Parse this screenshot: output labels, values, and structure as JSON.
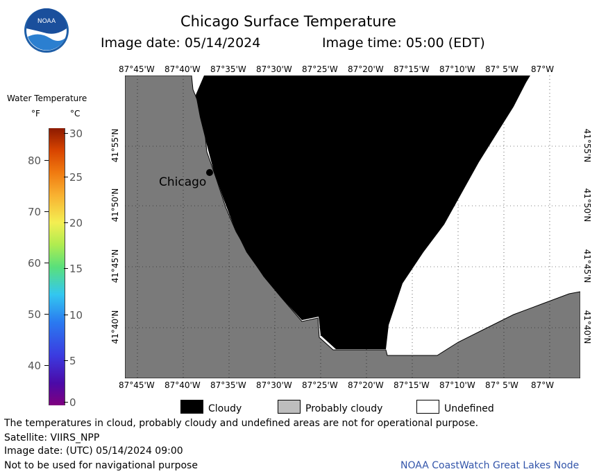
{
  "title": "Chicago Surface Temperature",
  "image_date_label": "Image date: 05/14/2024",
  "image_time_label": "Image time: 05:00 (EDT)",
  "logo_text": "NOAA",
  "legend": {
    "title": "Water Temperature",
    "unit_f": "°F",
    "unit_c": "°C",
    "f_ticks": [
      "80",
      "70",
      "60",
      "50",
      "40"
    ],
    "c_ticks": [
      "30",
      "25",
      "20",
      "15",
      "10",
      "5",
      "0"
    ]
  },
  "axes": {
    "longitudes": [
      "87°45'W",
      "87°40'W",
      "87°35'W",
      "87°30'W",
      "87°25'W",
      "87°20'W",
      "87°15'W",
      "87°10'W",
      "87° 5'W",
      "87°W"
    ],
    "latitudes": [
      "41°55'N",
      "41°50'N",
      "41°45'N",
      "41°40'N"
    ]
  },
  "city_label": "Chicago",
  "key": {
    "cloudy": "Cloudy",
    "probably_cloudy": "Probably cloudy",
    "undefined": "Undefined"
  },
  "notes": [
    "The temperatures in cloud, probably cloudy and undefined areas are not for operational purpose.",
    "Satellite: VIIRS_NPP",
    "Image date: (UTC) 05/14/2024  09:00",
    "Not to be used for navigational purpose"
  ],
  "credit": "NOAA CoastWatch Great Lakes Node",
  "colors": {
    "land": "#7a7a7a",
    "cloud": "#000000",
    "undefined": "#ffffff",
    "probably_cloudy": "#bdbdbd",
    "credit": "#3355aa"
  }
}
